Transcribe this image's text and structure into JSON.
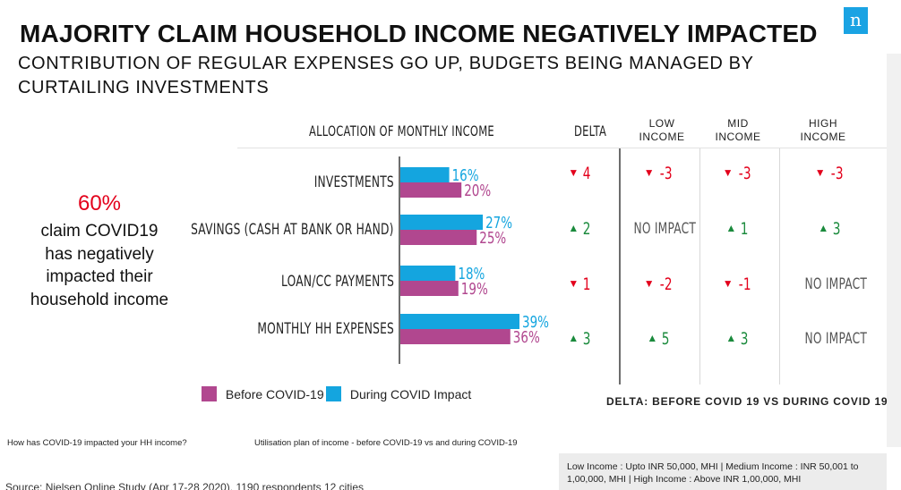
{
  "title": "MAJORITY CLAIM HOUSEHOLD INCOME NEGATIVELY IMPACTED",
  "subtitle": "CONTRIBUTION OF REGULAR EXPENSES GO UP, BUDGETS BEING MANAGED BY CURTAILING INVESTMENTS",
  "logo": "n",
  "callout": {
    "percent": "60%",
    "text": "claim COVID19 has negatively impacted their household income"
  },
  "table": {
    "allocation_header": "ALLOCATION OF MONTHLY INCOME",
    "delta_header": "DELTA",
    "low_income_header": "LOW INCOME",
    "mid_income_header": "MID INCOME",
    "high_income_header": "HIGH INCOME",
    "rows": [
      {
        "label": "INVESTMENTS",
        "delta": {
          "dir": "down",
          "value": "4"
        },
        "low": {
          "dir": "down",
          "value": "-3"
        },
        "mid": {
          "dir": "down",
          "value": "-3"
        },
        "high": {
          "dir": "down",
          "value": "-3"
        }
      },
      {
        "label": "SAVINGS (CASH AT BANK OR HAND)",
        "delta": {
          "dir": "up",
          "value": "2"
        },
        "low": {
          "dir": "none",
          "value": "NO IMPACT"
        },
        "mid": {
          "dir": "up",
          "value": "1"
        },
        "high": {
          "dir": "up",
          "value": "3"
        }
      },
      {
        "label": "LOAN/CC PAYMENTS",
        "delta": {
          "dir": "down",
          "value": "1"
        },
        "low": {
          "dir": "down",
          "value": "-2"
        },
        "mid": {
          "dir": "down",
          "value": "-1"
        },
        "high": {
          "dir": "none",
          "value": "NO IMPACT"
        }
      },
      {
        "label": "MONTHLY HH EXPENSES",
        "delta": {
          "dir": "up",
          "value": "3"
        },
        "low": {
          "dir": "up",
          "value": "5"
        },
        "mid": {
          "dir": "up",
          "value": "3"
        },
        "high": {
          "dir": "none",
          "value": "NO IMPACT"
        }
      }
    ]
  },
  "chart_data": {
    "type": "bar",
    "orientation": "horizontal",
    "categories": [
      "INVESTMENTS",
      "SAVINGS (CASH AT BANK OR HAND)",
      "LOAN/CC PAYMENTS",
      "MONTHLY HH EXPENSES"
    ],
    "series": [
      {
        "name": "During COVID Impact",
        "values": [
          16,
          27,
          18,
          39
        ],
        "labels": [
          "16%",
          "27%",
          "18%",
          "39%"
        ],
        "color": "#14a5df"
      },
      {
        "name": "Before COVID-19",
        "values": [
          20,
          25,
          19,
          36
        ],
        "labels": [
          "20%",
          "25%",
          "19%",
          "36%"
        ],
        "color": "#b1478f"
      }
    ],
    "title": "ALLOCATION OF MONTHLY INCOME",
    "xlim": [
      0,
      40
    ],
    "grid": false,
    "legend_position": "bottom-left"
  },
  "legend": {
    "before_label": "Before COVID-19",
    "during_label": "During COVID Impact"
  },
  "delta_note": "DELTA:  BEFORE COVID 19 VS DURING COVID 19",
  "question_1": "How has COVID-19  impacted your HH income?",
  "question_2": "Utilisation plan of income - before COVID-19   vs  and during COVID-19",
  "source": "Source: Nielsen Online Study (Apr 17-28 2020), 1190 respondents 12  cities",
  "footnote": "Low Income : Upto INR 50,000,  MHI | Medium Income : INR 50,001 to 1,00,000,  MHI | High Income : Above INR 1,00,000,  MHI",
  "colors": {
    "before": "#b1478f",
    "during": "#14a5df",
    "down": "#e3001b",
    "up": "#1a8a3c",
    "logo": "#1aa3e3",
    "callout": "#e3001b"
  }
}
